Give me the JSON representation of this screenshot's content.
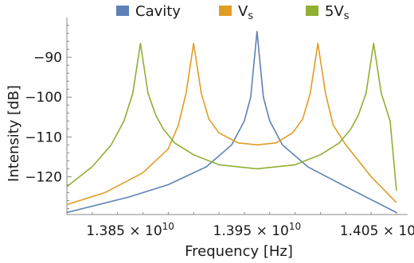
{
  "chart_data": {
    "type": "line",
    "title": "",
    "xlabel": "Frequency [Hz]",
    "ylabel": "Intensity [dB]",
    "xlim": [
      13800000000,
      14060000000
    ],
    "ylim": [
      -129.5,
      -80
    ],
    "x_scale": "linear",
    "y_scale": "linear",
    "grid": false,
    "legend": {
      "placement": "top-center",
      "entries": [
        {
          "name": "Cavity",
          "color": "#5e81b5",
          "label": "Cavity"
        },
        {
          "name": "Vs",
          "color": "#e19c24",
          "label_main": "V",
          "label_sub": "s"
        },
        {
          "name": "5Vs",
          "color": "#8fb032",
          "label_main": "5V",
          "label_sub": "s"
        }
      ]
    },
    "x_ticks": [
      {
        "value": 13850000000,
        "mantissa": "1.385",
        "times": "×",
        "base": "10",
        "exp": "10"
      },
      {
        "value": 13950000000,
        "mantissa": "1.395",
        "times": "×",
        "base": "10",
        "exp": "10"
      },
      {
        "value": 14050000000,
        "mantissa": "1.405",
        "times": "×",
        "base": "10",
        "exp": "10"
      }
    ],
    "y_ticks": [
      {
        "value": -90,
        "label": "−90"
      },
      {
        "value": -100,
        "label": "−100"
      },
      {
        "value": -110,
        "label": "−110"
      },
      {
        "value": -120,
        "label": "−120"
      }
    ],
    "series": [
      {
        "name": "Cavity",
        "color": "#5e81b5",
        "x": [
          13800000000,
          13850000000,
          13880000000,
          13910000000,
          13930000000,
          13940000000,
          13945000000,
          13950000000,
          13955000000,
          13960000000,
          13970000000,
          13990000000,
          14020000000,
          14060000000
        ],
        "y": [
          -129,
          -125,
          -122,
          -117.5,
          -112,
          -106,
          -100,
          -83.5,
          -100,
          -106,
          -112,
          -117.5,
          -122.5,
          -129
        ]
      },
      {
        "name": "Vs",
        "color": "#e19c24",
        "x": [
          13800000000,
          13830000000,
          13860000000,
          13880000000,
          13888000000,
          13894000000,
          13900000000,
          13906000000,
          13912000000,
          13920000000,
          13935000000,
          13950000000,
          13965000000,
          13978000000,
          13986000000,
          13992000000,
          13998000000,
          14004000000,
          14010000000,
          14020000000,
          14040000000,
          14060000000
        ],
        "y": [
          -127,
          -124,
          -119,
          -113,
          -107,
          -99,
          -86.5,
          -99,
          -105.5,
          -109,
          -111.5,
          -112,
          -111.5,
          -109,
          -105.5,
          -99,
          -86.5,
          -99,
          -107,
          -112,
          -120,
          -126.5
        ]
      },
      {
        "name": "5Vs",
        "color": "#8fb032",
        "x": [
          13800000000,
          13820000000,
          13835000000,
          13845000000,
          13852000000,
          13858000000,
          13864000000,
          13870000000,
          13876000000,
          13885000000,
          13900000000,
          13920000000,
          13950000000,
          13980000000,
          14000000000,
          14015000000,
          14024000000,
          14030000000,
          14036000000,
          14042000000,
          14048000000,
          14055000000,
          14060000000
        ],
        "y": [
          -122.5,
          -117.5,
          -112,
          -106,
          -99,
          -86.5,
          -99,
          -104.5,
          -108,
          -111.5,
          -114.5,
          -117,
          -118,
          -117,
          -114.5,
          -111.5,
          -108,
          -104.5,
          -99,
          -86.5,
          -99,
          -106,
          -123.5
        ]
      }
    ]
  }
}
